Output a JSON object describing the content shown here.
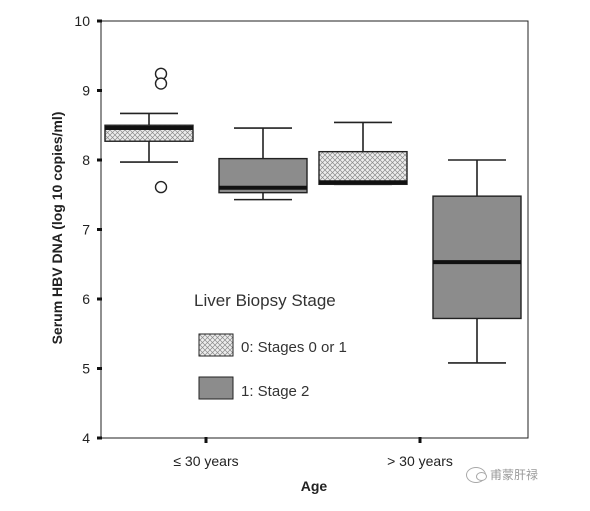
{
  "chart_data": {
    "type": "box",
    "title": "",
    "xlabel": "Age",
    "ylabel": "Serum HBV DNA (log 10 copies/ml)",
    "ylim": [
      4,
      10
    ],
    "yticks": [
      4,
      5,
      6,
      7,
      8,
      9,
      10
    ],
    "grid": false,
    "categories": [
      "≤ 30 years",
      "> 30 years"
    ],
    "legend": {
      "title": "Liver Biopsy Stage",
      "placement": "center",
      "entries": [
        "0: Stages 0 or 1",
        "1: Stage 2"
      ]
    },
    "series": [
      {
        "name": "0: Stages 0 or 1",
        "fill": "crosshatch",
        "color": "#e6e6e6",
        "boxes": [
          {
            "whisker_low": 7.97,
            "q1": 8.27,
            "median": 8.46,
            "q3": 8.5,
            "whisker_high": 8.67,
            "outliers": [
              9.24,
              9.1,
              7.61
            ]
          },
          {
            "whisker_low": 7.65,
            "q1": 7.65,
            "median": 7.68,
            "q3": 8.12,
            "whisker_high": 8.54,
            "outliers": []
          }
        ]
      },
      {
        "name": "1: Stage 2",
        "fill": "solid",
        "color": "#8c8c8c",
        "boxes": [
          {
            "whisker_low": 7.43,
            "q1": 7.53,
            "median": 7.6,
            "q3": 8.02,
            "whisker_high": 8.46,
            "outliers": []
          },
          {
            "whisker_low": 5.08,
            "q1": 5.72,
            "median": 6.53,
            "q3": 7.48,
            "whisker_high": 8.0,
            "outliers": []
          }
        ]
      }
    ]
  },
  "watermark": {
    "text": "甫蒙肝禄",
    "icon": "wechat-icon"
  }
}
